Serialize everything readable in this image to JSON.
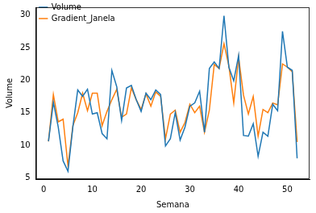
{
  "chart_data": {
    "type": "line",
    "x_label": "Semana",
    "y_label": "Volume",
    "x": [
      1,
      2,
      3,
      4,
      5,
      6,
      7,
      8,
      9,
      10,
      11,
      12,
      13,
      14,
      15,
      16,
      17,
      18,
      19,
      20,
      21,
      22,
      23,
      24,
      25,
      26,
      27,
      28,
      29,
      30,
      31,
      32,
      33,
      34,
      35,
      36,
      37,
      38,
      39,
      40,
      41,
      42,
      43,
      44,
      45,
      46,
      47,
      48,
      49,
      50,
      51,
      52
    ],
    "series": [
      {
        "name": "Volume",
        "color": "#1f77b4",
        "values": [
          10.6,
          16.6,
          12.8,
          7.6,
          6.0,
          12.8,
          18.5,
          17.5,
          18.6,
          14.8,
          15.0,
          11.8,
          11.0,
          21.5,
          19.0,
          13.8,
          18.8,
          19.2,
          17.0,
          15.2,
          18.0,
          17.0,
          18.5,
          17.8,
          9.9,
          11.0,
          15.0,
          10.8,
          12.8,
          16.0,
          16.5,
          18.3,
          12.0,
          21.8,
          22.8,
          21.8,
          29.9,
          22.0,
          19.9,
          23.8,
          11.5,
          11.4,
          13.3,
          8.3,
          12.0,
          11.4,
          16.3,
          15.3,
          27.5,
          22.0,
          21.5,
          8.0
        ]
      },
      {
        "name": "Gradient_Janela",
        "color": "#ff7f0e",
        "values": [
          10.6,
          17.8,
          13.6,
          14.0,
          6.8,
          13.0,
          15.0,
          18.0,
          15.3,
          18.0,
          18.0,
          13.0,
          15.2,
          17.0,
          18.6,
          14.3,
          14.8,
          18.8,
          17.0,
          15.5,
          17.9,
          16.0,
          18.2,
          17.5,
          11.0,
          14.8,
          15.4,
          12.0,
          13.5,
          16.3,
          15.0,
          16.0,
          12.0,
          15.4,
          22.4,
          21.8,
          25.6,
          22.2,
          16.5,
          23.5,
          17.7,
          14.8,
          17.5,
          11.4,
          15.5,
          15.0,
          16.5,
          16.2,
          22.5,
          22.0,
          21.3,
          10.5
        ]
      }
    ],
    "xlim": [
      -1.55,
      54.55
    ],
    "xticks": [
      0,
      10,
      20,
      30,
      40,
      50
    ],
    "ylim": [
      4.8,
      31.2
    ],
    "yticks": [
      5,
      10,
      15,
      20,
      25,
      30
    ],
    "grid": false,
    "legend": "upper left"
  }
}
